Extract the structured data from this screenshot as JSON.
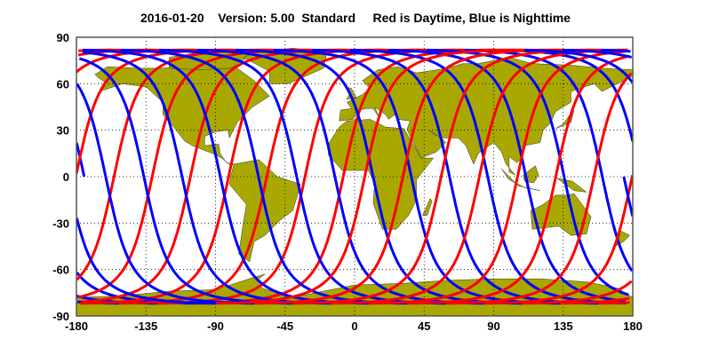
{
  "title": "2016-01-20    Version: 5.00  Standard     Red is Daytime, Blue is Nighttime",
  "chart_data": {
    "type": "map",
    "title": "2016-01-20    Version: 5.00  Standard     Red is Daytime, Blue is Nighttime",
    "xlim": [
      -180,
      180
    ],
    "ylim": [
      -90,
      90
    ],
    "x_ticks": [
      "-180",
      "-135",
      "-90",
      "-45",
      "0",
      "45",
      "90",
      "135",
      "180"
    ],
    "y_ticks": [
      "90",
      "60",
      "30",
      "0",
      "-30",
      "-60",
      "-90"
    ],
    "grid": true,
    "legend": [
      {
        "label": "Daytime",
        "color": "#ff0000"
      },
      {
        "label": "Nighttime",
        "color": "#0000ff"
      }
    ],
    "land_color": "#a8a800"
  }
}
